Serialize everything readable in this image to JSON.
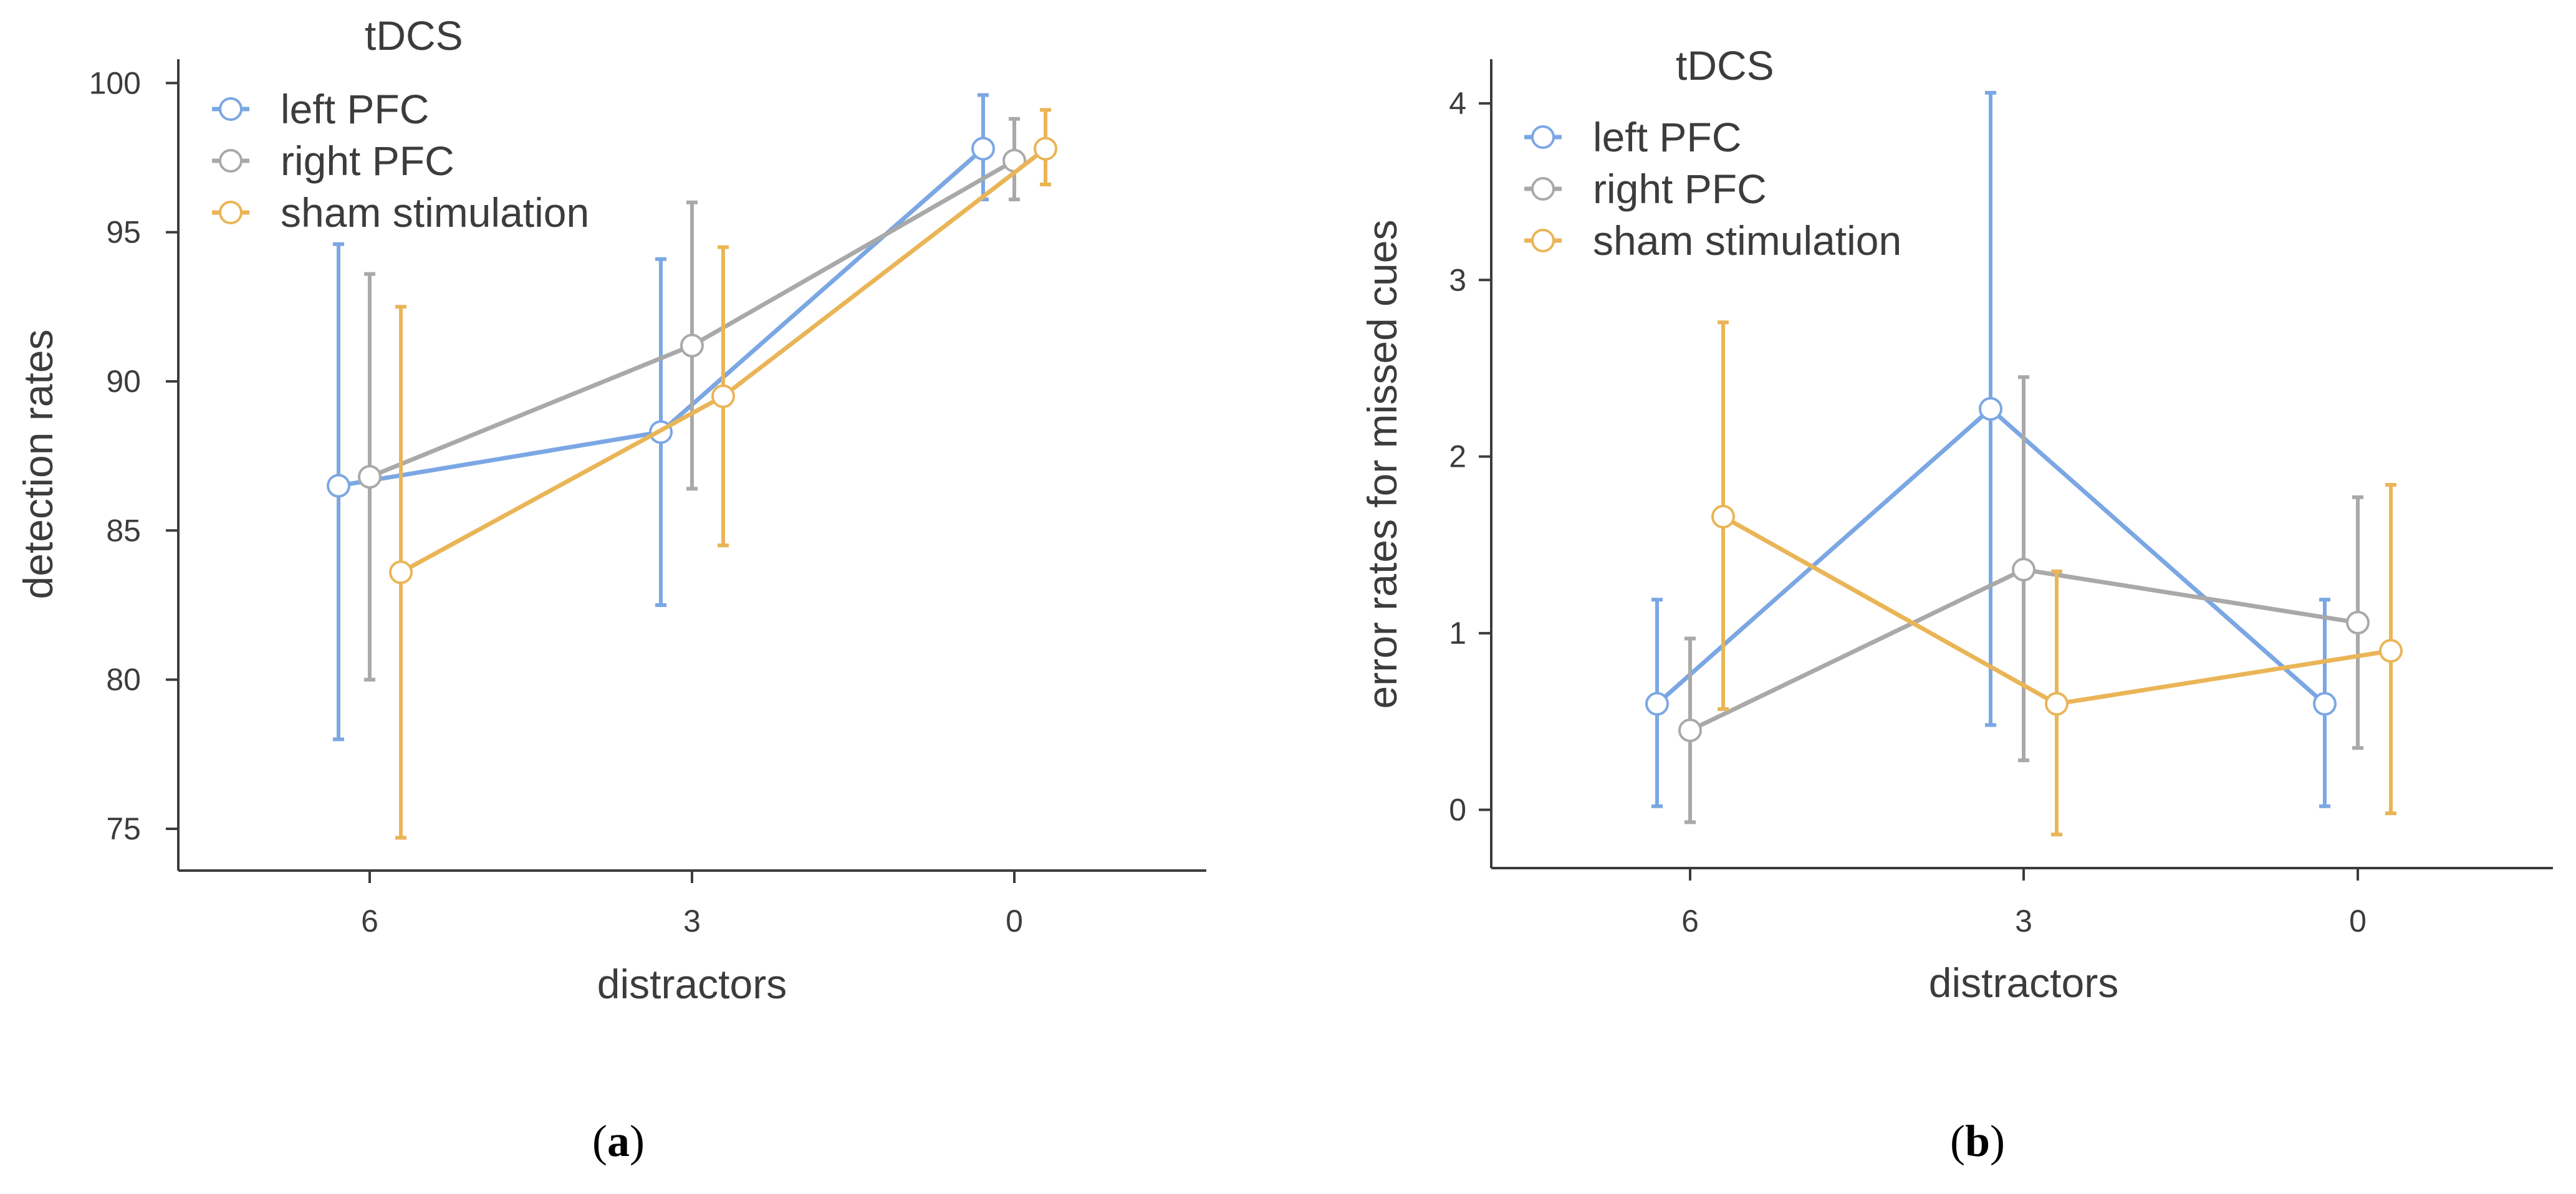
{
  "chart_data": [
    {
      "type": "line",
      "panel_label": "a",
      "xlabel": "distractors",
      "ylabel": "detection rates",
      "categories": [
        "6",
        "3",
        "0"
      ],
      "ylim": [
        73.6,
        100.8
      ],
      "yticks": [
        75,
        80,
        85,
        90,
        95,
        100
      ],
      "grid": false,
      "legend": {
        "title": "tDCS",
        "placement": "top-left"
      },
      "series": [
        {
          "name": "left PFC",
          "color": "#7ba7e3",
          "values": [
            86.5,
            88.3,
            97.8
          ],
          "err_low": [
            78.0,
            82.5,
            96.1
          ],
          "err_high": [
            94.6,
            94.1,
            99.6
          ]
        },
        {
          "name": "right PFC",
          "color": "#a9a9a9",
          "values": [
            86.8,
            91.2,
            97.4
          ],
          "err_low": [
            80.0,
            86.4,
            96.1
          ],
          "err_high": [
            93.6,
            96.0,
            98.8
          ]
        },
        {
          "name": "sham stimulation",
          "color": "#eab557",
          "values": [
            83.6,
            89.5,
            97.8
          ],
          "err_low": [
            74.7,
            84.5,
            96.6
          ],
          "err_high": [
            92.5,
            94.5,
            99.1
          ]
        }
      ]
    },
    {
      "type": "line",
      "panel_label": "b",
      "xlabel": "distractors",
      "ylabel": "error rates for missed cues",
      "categories": [
        "6",
        "3",
        "0"
      ],
      "ylim": [
        -0.33,
        4.25
      ],
      "yticks": [
        0,
        1,
        2,
        3,
        4
      ],
      "grid": false,
      "legend": {
        "title": "tDCS",
        "placement": "top-left"
      },
      "series": [
        {
          "name": "left PFC",
          "color": "#7ba7e3",
          "values": [
            0.6,
            2.27,
            0.6
          ],
          "err_low": [
            0.02,
            0.48,
            0.02
          ],
          "err_high": [
            1.19,
            4.06,
            1.19
          ]
        },
        {
          "name": "right PFC",
          "color": "#a9a9a9",
          "values": [
            0.45,
            1.36,
            1.06
          ],
          "err_low": [
            -0.07,
            0.28,
            0.35
          ],
          "err_high": [
            0.97,
            2.45,
            1.77
          ]
        },
        {
          "name": "sham stimulation",
          "color": "#eab557",
          "values": [
            1.66,
            0.6,
            0.9
          ],
          "err_low": [
            0.57,
            -0.14,
            -0.02
          ],
          "err_high": [
            2.76,
            1.35,
            1.84
          ]
        }
      ]
    }
  ],
  "captions": {
    "a": "a",
    "b": "b"
  }
}
